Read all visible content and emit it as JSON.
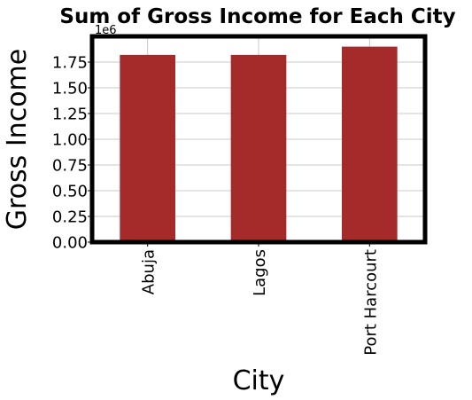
{
  "chart_data": {
    "type": "bar",
    "title": "Sum of Gross Income for Each City",
    "xlabel": "City",
    "ylabel": "Gross Income",
    "categories": [
      "Abuja",
      "Lagos",
      "Port Harcourt"
    ],
    "values": [
      1820000,
      1820000,
      1900000
    ],
    "ylim": [
      0,
      2000000
    ],
    "y_ticks": [
      0.0,
      0.25,
      0.5,
      0.75,
      1.0,
      1.25,
      1.5,
      1.75
    ],
    "y_tick_labels": [
      "0.00",
      "0.25",
      "0.50",
      "0.75",
      "1.00",
      "1.25",
      "1.50",
      "1.75"
    ],
    "y_scale_label": "1e6",
    "bar_color": "#a52a2a",
    "grid": true,
    "legend": "none"
  }
}
